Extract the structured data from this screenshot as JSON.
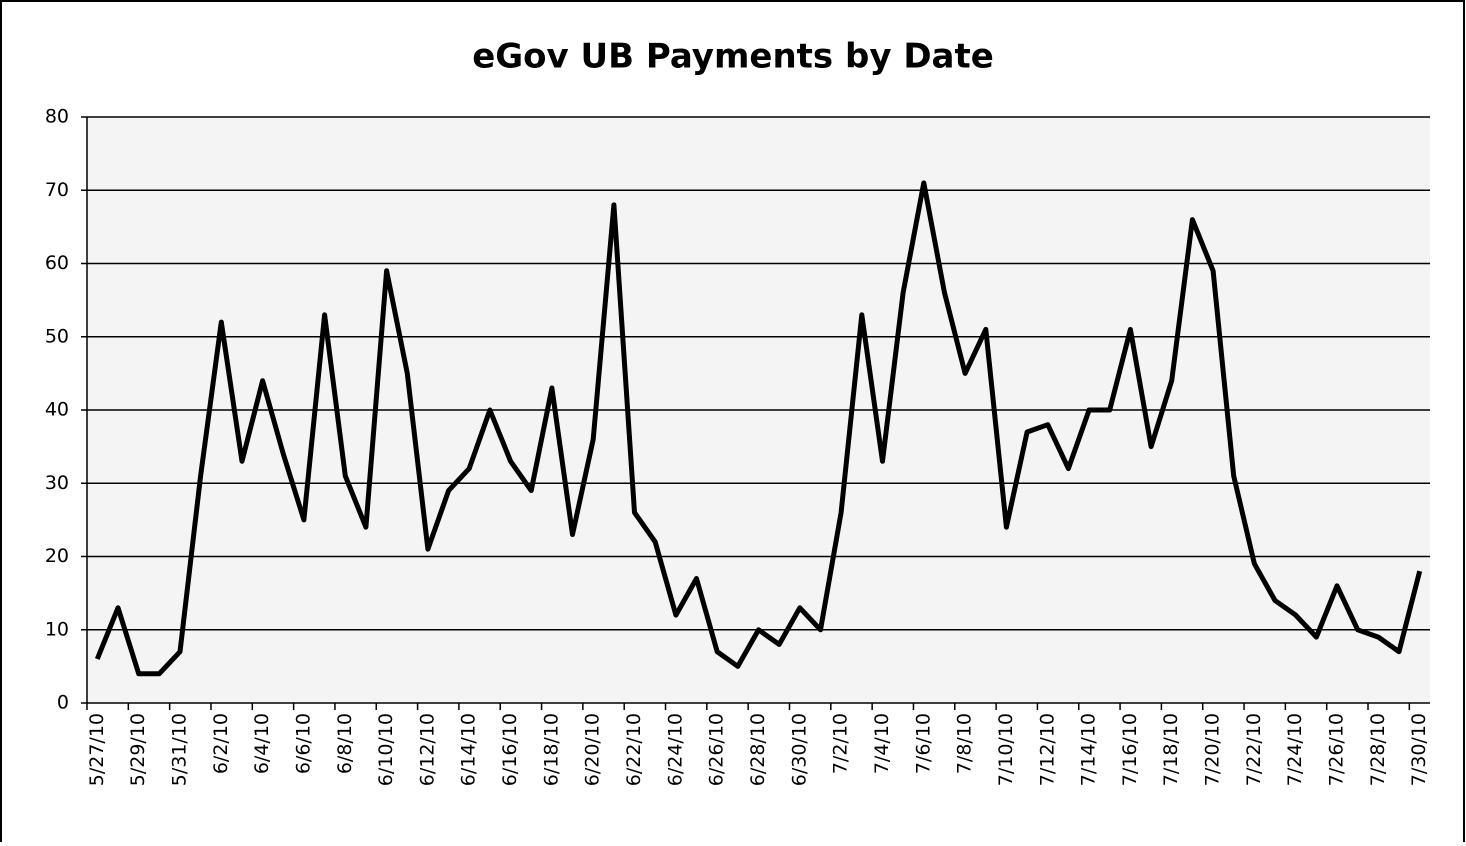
{
  "chart_data": {
    "type": "line",
    "title": "eGov UB Payments by Date",
    "categories": [
      "5/27/10",
      null,
      "5/29/10",
      null,
      "5/31/10",
      null,
      "6/2/10",
      null,
      "6/4/10",
      null,
      "6/6/10",
      null,
      "6/8/10",
      null,
      "6/10/10",
      null,
      "6/12/10",
      null,
      "6/14/10",
      null,
      "6/16/10",
      null,
      "6/18/10",
      null,
      "6/20/10",
      null,
      "6/22/10",
      null,
      "6/24/10",
      null,
      "6/26/10",
      null,
      "6/28/10",
      null,
      "6/30/10",
      null,
      "7/2/10",
      null,
      "7/4/10",
      null,
      "7/6/10",
      null,
      "7/8/10",
      null,
      "7/10/10",
      null,
      "7/12/10",
      null,
      "7/14/10",
      null,
      "7/16/10",
      null,
      "7/18/10",
      null,
      "7/20/10",
      null,
      "7/22/10",
      null,
      "7/24/10",
      null,
      "7/26/10",
      null,
      "7/28/10",
      null,
      "7/30/10"
    ],
    "values": [
      6,
      13,
      4,
      4,
      7,
      31,
      52,
      33,
      44,
      34,
      25,
      53,
      31,
      24,
      59,
      45,
      21,
      29,
      32,
      40,
      33,
      29,
      43,
      23,
      36,
      68,
      26,
      22,
      12,
      17,
      7,
      5,
      10,
      8,
      13,
      10,
      26,
      53,
      33,
      56,
      71,
      56,
      45,
      51,
      24,
      37,
      38,
      32,
      40,
      40,
      51,
      35,
      44,
      66,
      59,
      31,
      19,
      14,
      12,
      9,
      16,
      10,
      9,
      7,
      18
    ],
    "color": "#000000",
    "ylim": [
      0,
      80
    ],
    "yticks": [
      0,
      10,
      20,
      30,
      40,
      50,
      60,
      70,
      80
    ],
    "grid": true
  }
}
